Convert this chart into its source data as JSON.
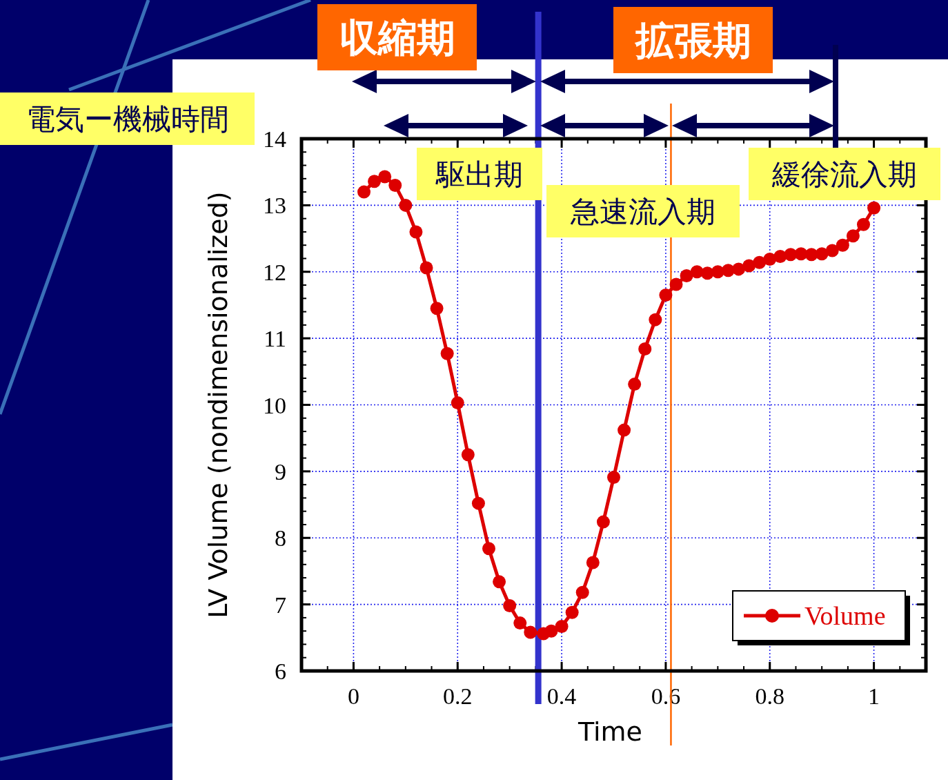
{
  "chart_data": {
    "type": "line",
    "xlabel": "Time",
    "ylabel": "LV Volume (nondimensionalized)",
    "x": [
      0.02,
      0.04,
      0.06,
      0.08,
      0.1,
      0.12,
      0.14,
      0.16,
      0.18,
      0.2,
      0.22,
      0.24,
      0.26,
      0.28,
      0.3,
      0.32,
      0.34,
      0.365,
      0.38,
      0.4,
      0.42,
      0.44,
      0.46,
      0.48,
      0.5,
      0.52,
      0.54,
      0.56,
      0.58,
      0.6,
      0.62,
      0.64,
      0.66,
      0.68,
      0.7,
      0.72,
      0.74,
      0.76,
      0.78,
      0.8,
      0.82,
      0.84,
      0.86,
      0.88,
      0.9,
      0.92,
      0.94,
      0.96,
      0.98,
      1.0
    ],
    "series": [
      {
        "name": "Volume",
        "color": "#dd0000",
        "values": [
          13.2,
          13.36,
          13.43,
          13.3,
          13.0,
          12.6,
          12.06,
          11.45,
          10.77,
          10.03,
          9.25,
          8.52,
          7.84,
          7.34,
          6.98,
          6.72,
          6.58,
          6.56,
          6.6,
          6.67,
          6.88,
          7.18,
          7.63,
          8.24,
          8.91,
          9.62,
          10.31,
          10.84,
          11.28,
          11.65,
          11.81,
          11.94,
          12.0,
          11.98,
          12.0,
          12.02,
          12.04,
          12.09,
          12.14,
          12.19,
          12.23,
          12.26,
          12.27,
          12.26,
          12.27,
          12.32,
          12.4,
          12.54,
          12.71,
          12.96
        ]
      }
    ],
    "xlim": [
      -0.1,
      1.1
    ],
    "xticks": [
      0,
      0.2,
      0.4,
      0.6,
      0.8,
      1
    ],
    "ylim": [
      6,
      14
    ],
    "yticks": [
      6,
      7,
      8,
      9,
      10,
      11,
      12,
      13,
      14
    ],
    "grid": true,
    "legend": "bottom right",
    "marker": "circle",
    "line_style": "solid",
    "ref_lines": [
      {
        "axis": "x",
        "value": 0.355,
        "color": "#3333cc"
      },
      {
        "axis": "x",
        "value": 0.61,
        "color": "#ff6600"
      }
    ],
    "annotations": [
      "収縮期",
      "拡張期",
      "電気ー機械時間",
      "駆出期",
      "急速流入期",
      "緩徐流入期"
    ]
  }
}
